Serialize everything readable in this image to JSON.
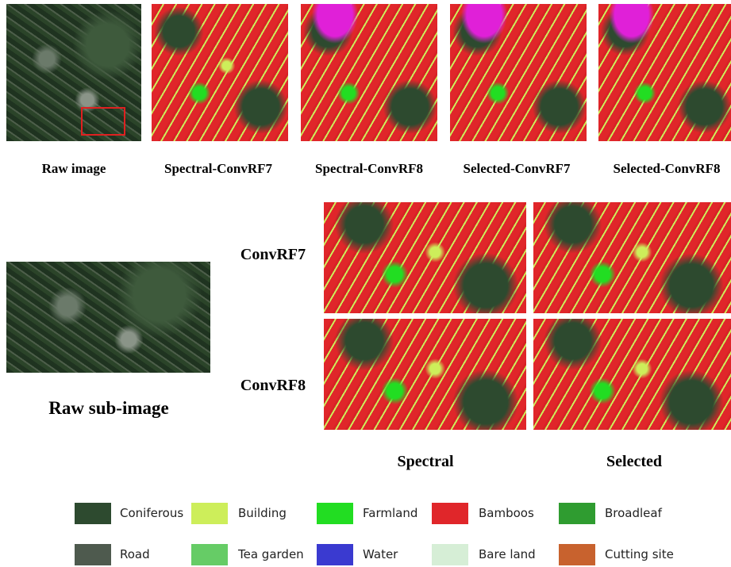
{
  "figure": {
    "top_captions": [
      "Raw image",
      "Spectral-ConvRF7",
      "Spectral-ConvRF8",
      "Selected-ConvRF7",
      "Selected-ConvRF8"
    ],
    "sub_image_caption": "Raw sub-image",
    "row_labels": [
      "ConvRF7",
      "ConvRF8"
    ],
    "column_labels": [
      "Spectral",
      "Selected"
    ],
    "legend": [
      {
        "label": "Coniferous",
        "color": "#2d4a2f"
      },
      {
        "label": "Building",
        "color": "#cdee5a"
      },
      {
        "label": "Farmland",
        "color": "#22dd22"
      },
      {
        "label": "Bamboos",
        "color": "#e0262a"
      },
      {
        "label": "Broadleaf",
        "color": "#2f9c30"
      },
      {
        "label": "Road",
        "color": "#4e5a4e"
      },
      {
        "label": "Tea garden",
        "color": "#66cc66"
      },
      {
        "label": "Water",
        "color": "#3a3ad0"
      },
      {
        "label": "Bare land",
        "color": "#d6eed6"
      },
      {
        "label": "Cutting site",
        "color": "#c8622e"
      }
    ]
  }
}
